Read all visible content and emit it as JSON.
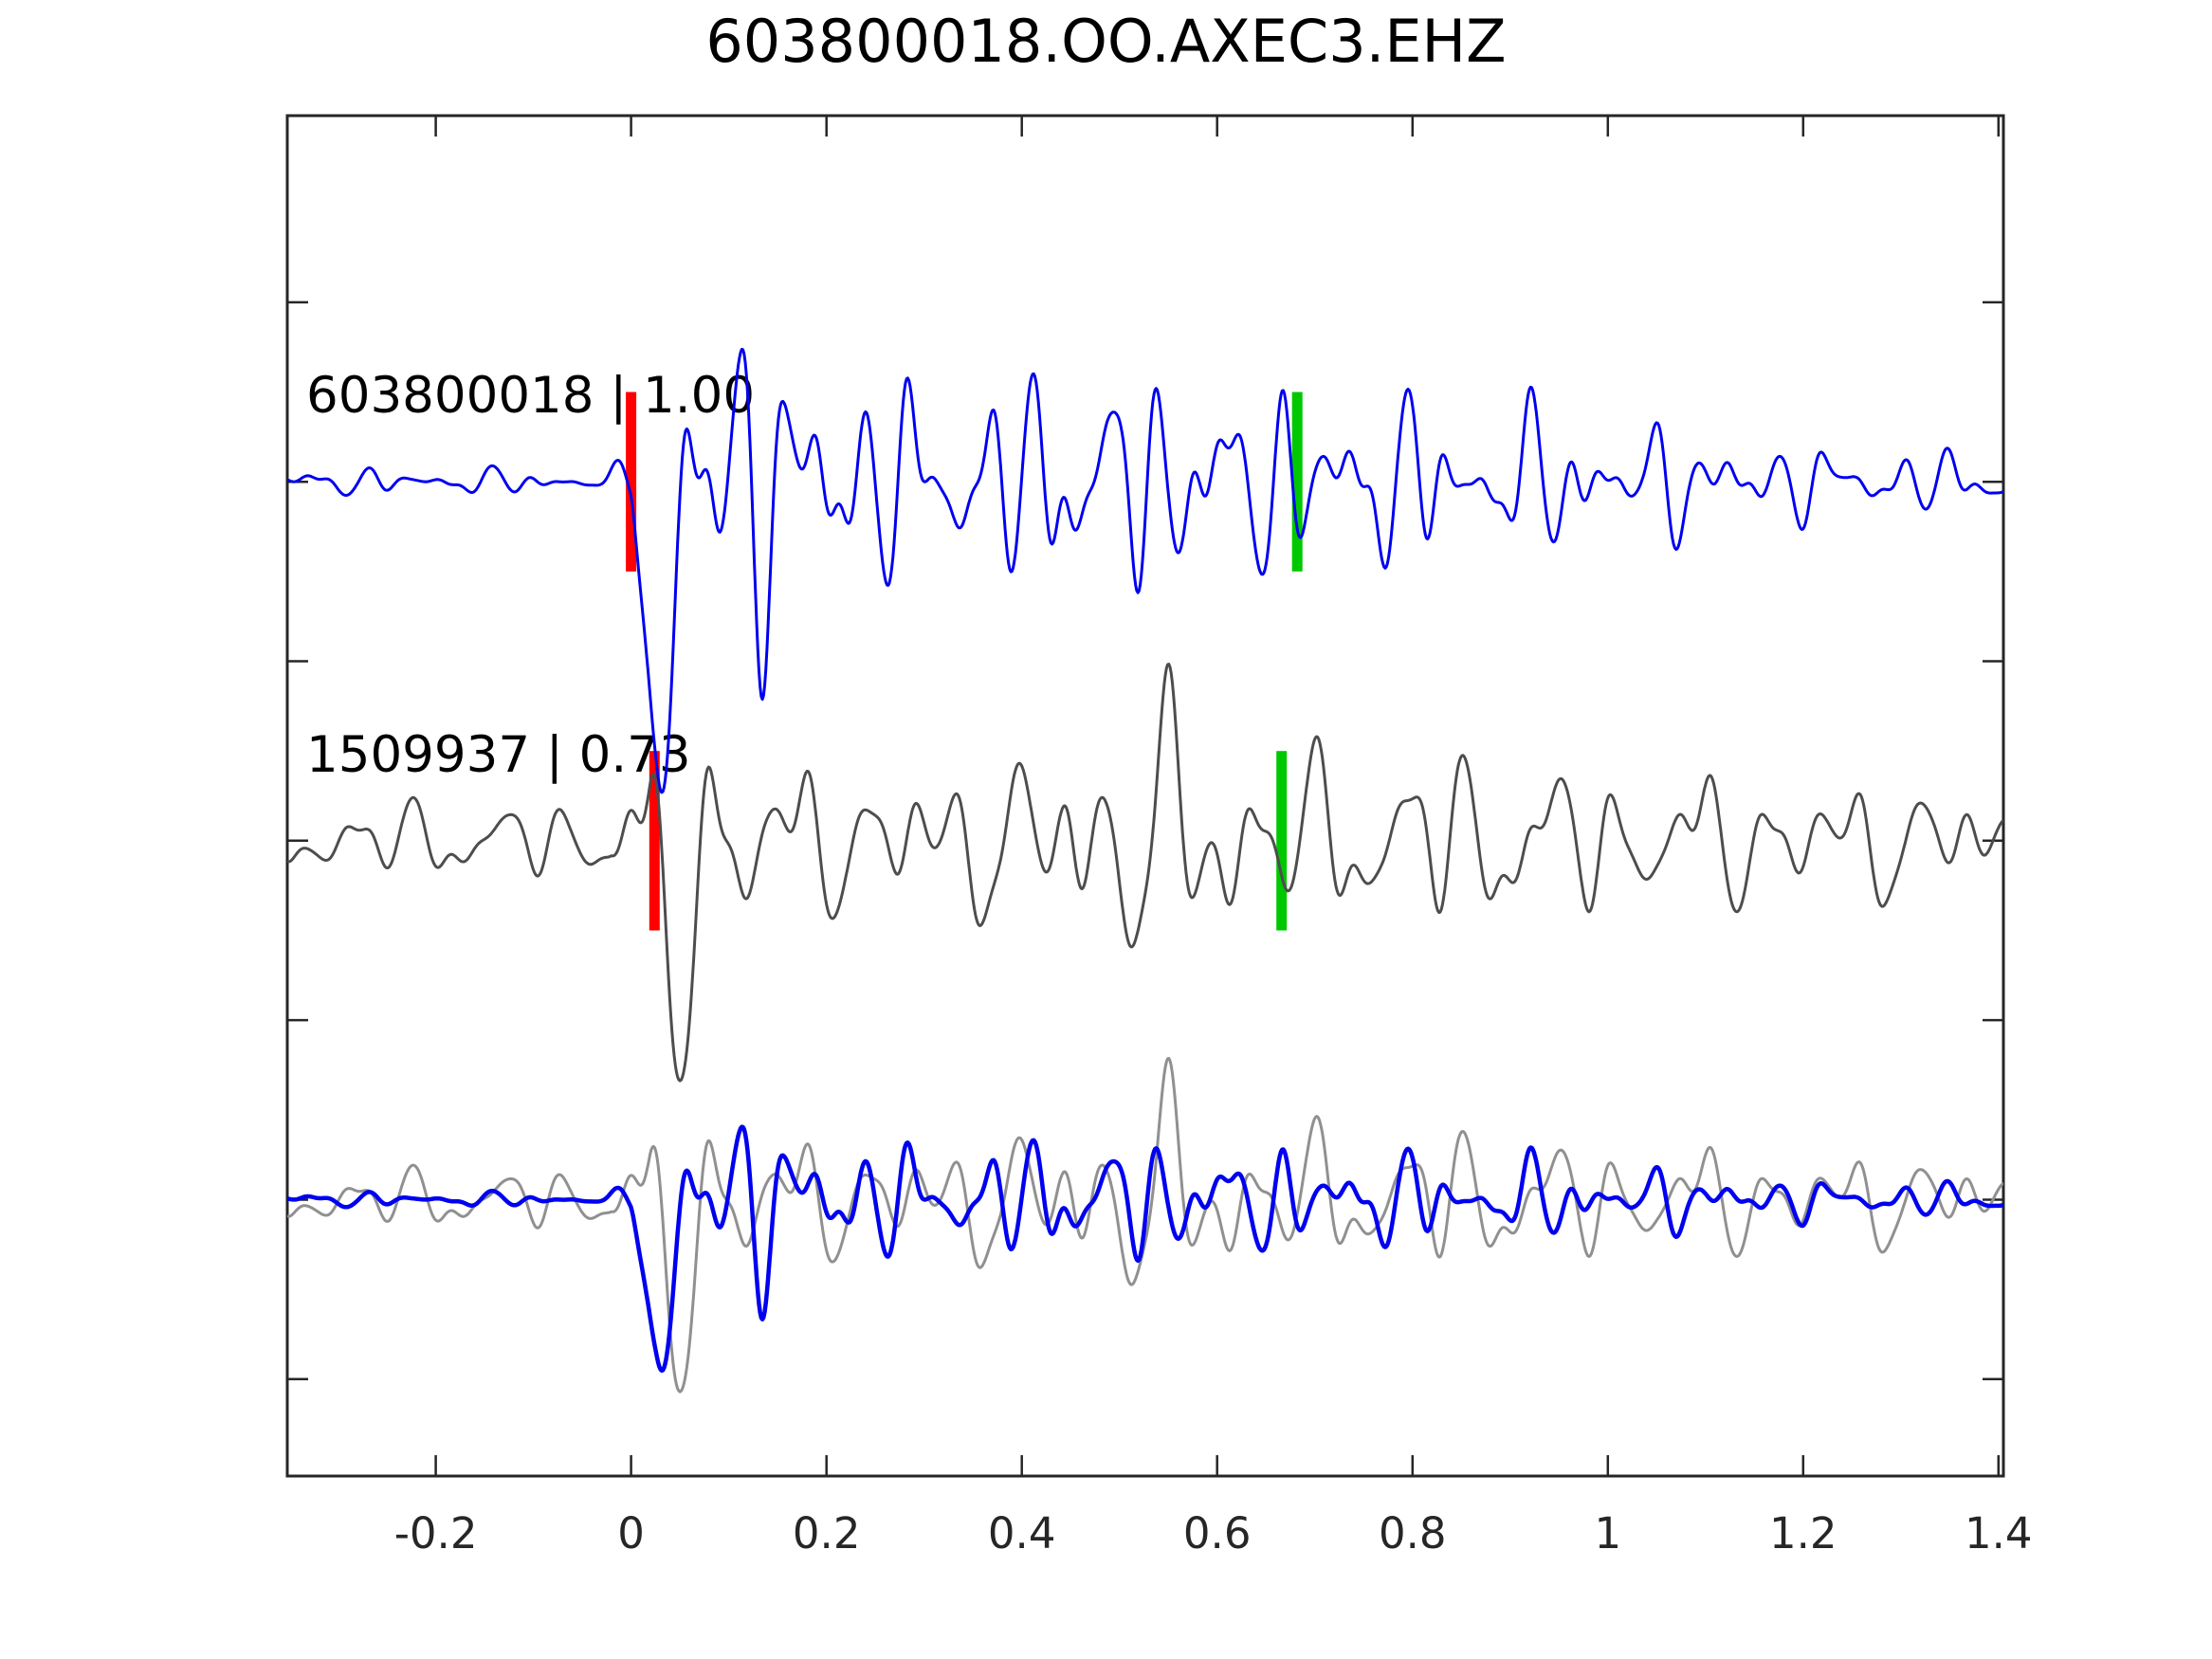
{
  "figure": {
    "background": "#ffffff"
  },
  "chart_data": {
    "type": "line",
    "subtype": "seismic-waveform-detection-comparison",
    "title": "603800018.OO.AXEC3.EHZ",
    "xlabel": "",
    "ylabel": "",
    "xlim": [
      -0.352,
      1.405
    ],
    "ylim": [
      -0.77,
      3.02
    ],
    "xticks": [
      -0.2,
      0,
      0.2,
      0.4,
      0.6,
      0.8,
      1,
      1.2,
      1.4
    ],
    "xtick_labels": [
      "-0.2",
      "0",
      "0.2",
      "0.4",
      "0.6",
      "0.8",
      "1",
      "1.2",
      "1.4"
    ],
    "yticks": [
      2.5,
      2,
      1.5,
      1,
      0.5,
      0,
      -0.5
    ],
    "ytick_labels": [
      "",
      "",
      "",
      "",
      "",
      "",
      ""
    ],
    "grid": false,
    "box": true,
    "tick_direction": "in",
    "legend": "none",
    "axis_color": "#262626",
    "tick_label_color": "#262626",
    "text_color": "#000000",
    "marker_colors": {
      "pick": "#ff0000",
      "window_end": "#00c800"
    },
    "traces": [
      {
        "id": "template",
        "label": "603800018 | 1.00",
        "color": "#0000f0",
        "linewidth": 3,
        "offset": 2,
        "markers": [
          {
            "kind": "pick",
            "color": "#ff0000",
            "t": 0.0,
            "half_height": 0.25
          },
          {
            "kind": "window_end",
            "color": "#00c800",
            "t": 0.682,
            "half_height": 0.25
          }
        ],
        "synth": {
          "seed": 11,
          "freqs": [
            9.5,
            16,
            23.5,
            31,
            44
          ],
          "weights": [
            0.45,
            0.9,
            1.0,
            0.55,
            0.18
          ],
          "envelope": [
            [
              -0.36,
              0.045
            ],
            [
              -0.03,
              0.045
            ],
            [
              0.0,
              0.07
            ],
            [
              0.025,
              0.6
            ],
            [
              0.1,
              0.62
            ],
            [
              0.17,
              0.48
            ],
            [
              0.26,
              0.34
            ],
            [
              0.36,
              0.32
            ],
            [
              0.44,
              0.4
            ],
            [
              0.54,
              0.37
            ],
            [
              0.64,
              0.32
            ],
            [
              0.75,
              0.3
            ],
            [
              0.88,
              0.26
            ],
            [
              1.0,
              0.22
            ],
            [
              1.12,
              0.16
            ],
            [
              1.25,
              0.11
            ],
            [
              1.41,
              0.1
            ]
          ],
          "spike": {
            "t": 0.03,
            "depth": 1.0,
            "width": 0.013
          }
        }
      },
      {
        "id": "detection",
        "label": "1509937 | 0.73",
        "color": "#4d4d4d",
        "linewidth": 3,
        "offset": 1,
        "markers": [
          {
            "kind": "pick",
            "color": "#ff0000",
            "t": 0.024,
            "half_height": 0.25
          },
          {
            "kind": "window_end",
            "color": "#00c800",
            "t": 0.666,
            "half_height": 0.25
          }
        ],
        "synth": {
          "seed": 23,
          "freqs": [
            7.5,
            13,
            19.5,
            27,
            38
          ],
          "weights": [
            0.6,
            1.0,
            0.85,
            0.45,
            0.15
          ],
          "envelope": [
            [
              -0.36,
              0.13
            ],
            [
              -0.02,
              0.13
            ],
            [
              0.02,
              0.5
            ],
            [
              0.08,
              0.48
            ],
            [
              0.14,
              0.28
            ],
            [
              0.22,
              0.22
            ],
            [
              0.32,
              0.25
            ],
            [
              0.44,
              0.28
            ],
            [
              0.5,
              0.46
            ],
            [
              0.58,
              0.44
            ],
            [
              0.66,
              0.26
            ],
            [
              0.76,
              0.3
            ],
            [
              0.86,
              0.3
            ],
            [
              0.96,
              0.24
            ],
            [
              1.1,
              0.22
            ],
            [
              1.25,
              0.2
            ],
            [
              1.41,
              0.16
            ]
          ],
          "spike": {
            "t": 0.04,
            "depth": 0.55,
            "width": 0.015
          }
        }
      },
      {
        "id": "overlay",
        "label": "",
        "offset": 0,
        "markers": [],
        "components": [
          {
            "ref": "detection",
            "color": "#909090",
            "scale": 0.8,
            "linewidth": 3
          },
          {
            "ref": "template",
            "color": "#0000f0",
            "scale": 0.55,
            "linewidth": 4.5
          }
        ]
      }
    ]
  }
}
